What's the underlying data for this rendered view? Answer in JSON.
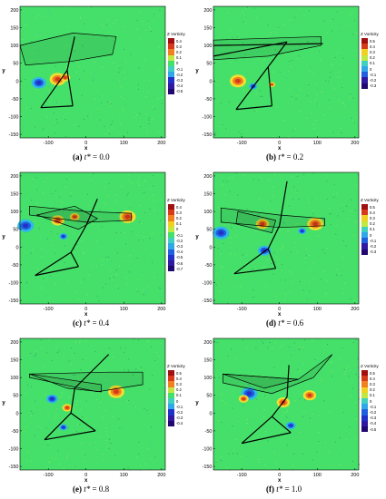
{
  "common": {
    "x_ticks": [
      "-100",
      "0",
      "100",
      "200"
    ],
    "y_ticks": [
      "200",
      "150",
      "100",
      "50",
      "0",
      "-50",
      "-100",
      "-150"
    ],
    "xlabel": "x",
    "ylabel": "y",
    "colorbar_title": "Z Vorticity",
    "colors": {
      "background": "#45e06a",
      "positive_core": "#d63a1a",
      "negative_core": "#2030c8",
      "hull": "#000000"
    }
  },
  "panels": [
    {
      "label": "(a)",
      "time": "0.0",
      "colorbar_ticks": [
        "0.4",
        "0.3",
        "0.2",
        "0.1",
        "0",
        "-0.1",
        "-0.2",
        "-0.3",
        "-0.4",
        "-0.5"
      ]
    },
    {
      "label": "(b)",
      "time": "0.2",
      "colorbar_ticks": [
        "0.5",
        "0.4",
        "0.3",
        "0.2",
        "0.1",
        "0",
        "-0.1",
        "-0.2",
        "-0.3"
      ]
    },
    {
      "label": "(c)",
      "time": "0.4",
      "colorbar_ticks": [
        "0.4",
        "0.3",
        "0.2",
        "0.1",
        "0",
        "-0.1",
        "-0.2",
        "-0.3",
        "-0.4",
        "-0.5",
        "-0.6",
        "-0.7"
      ]
    },
    {
      "label": "(d)",
      "time": "0.6",
      "colorbar_ticks": [
        "0.5",
        "0.4",
        "0.3",
        "0.2",
        "0.1",
        "0",
        "-0.1",
        "-0.2",
        "-0.3"
      ]
    },
    {
      "label": "(e)",
      "time": "0.8",
      "colorbar_ticks": [
        "0.5",
        "0.4",
        "0.3",
        "0.2",
        "0.1",
        "0",
        "-0.1",
        "-0.2",
        "-0.3",
        "-0.4"
      ]
    },
    {
      "label": "(f)",
      "time": "1.0",
      "colorbar_ticks": [
        "0.5",
        "0.4",
        "0.3",
        "0.2",
        "0.1",
        "0",
        "-0.1",
        "-0.2",
        "-0.3",
        "-0.4",
        "-0.5"
      ]
    }
  ]
}
